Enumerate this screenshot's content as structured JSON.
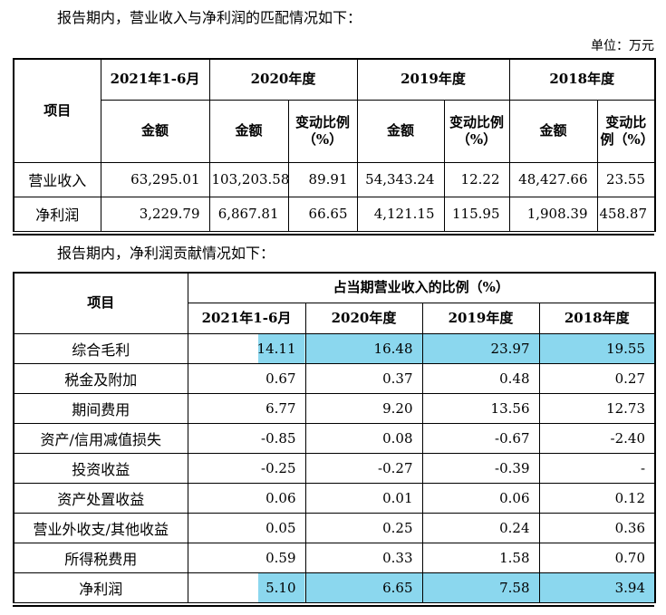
{
  "page": {
    "intro1": "报告期内，营业收入与净利润的匹配情况如下：",
    "unit_label": "单位：万元",
    "intro2": "报告期内，净利润贡献情况如下："
  },
  "colors": {
    "highlight": "#8bd7ee",
    "border": "#000000",
    "text": "#000000"
  },
  "table1": {
    "header": {
      "item": "项目",
      "period_2021": "2021年1-6月",
      "period_2020": "2020年度",
      "period_2019": "2019年度",
      "period_2018": "2018年度",
      "amount": "金额",
      "change_ratio": "变动比例（%）"
    },
    "rows": [
      {
        "label": "营业收入",
        "values": [
          "63,295.01",
          "103,203.58",
          "89.91",
          "54,343.24",
          "12.22",
          "48,427.66",
          "23.55"
        ],
        "highlight": false
      },
      {
        "label": "净利润",
        "values": [
          "3,229.79",
          "6,867.81",
          "66.65",
          "4,121.15",
          "115.95",
          "1,908.39",
          "458.87"
        ],
        "highlight": false
      }
    ]
  },
  "table2": {
    "header": {
      "item": "项目",
      "group": "占当期营业收入的比例（%）",
      "periods": [
        "2021年1-6月",
        "2020年度",
        "2019年度",
        "2018年度"
      ]
    },
    "rows": [
      {
        "label": "综合毛利",
        "values": [
          "14.11",
          "16.48",
          "23.97",
          "19.55"
        ],
        "highlight": true
      },
      {
        "label": "税金及附加",
        "values": [
          "0.67",
          "0.37",
          "0.48",
          "0.27"
        ],
        "highlight": false
      },
      {
        "label": "期间费用",
        "values": [
          "6.77",
          "9.20",
          "13.56",
          "12.73"
        ],
        "highlight": false
      },
      {
        "label": "资产/信用减值损失",
        "values": [
          "-0.85",
          "0.08",
          "-0.67",
          "-2.40"
        ],
        "highlight": false
      },
      {
        "label": "投资收益",
        "values": [
          "-0.25",
          "-0.27",
          "-0.39",
          "-"
        ],
        "highlight": false
      },
      {
        "label": "资产处置收益",
        "values": [
          "0.06",
          "0.01",
          "0.06",
          "0.12"
        ],
        "highlight": false
      },
      {
        "label": "营业外收支/其他收益",
        "values": [
          "0.05",
          "0.25",
          "0.24",
          "0.36"
        ],
        "highlight": false
      },
      {
        "label": "所得税费用",
        "values": [
          "0.59",
          "0.33",
          "1.58",
          "0.70"
        ],
        "highlight": false
      },
      {
        "label": "净利润",
        "values": [
          "5.10",
          "6.65",
          "7.58",
          "3.94"
        ],
        "highlight": true
      }
    ]
  }
}
